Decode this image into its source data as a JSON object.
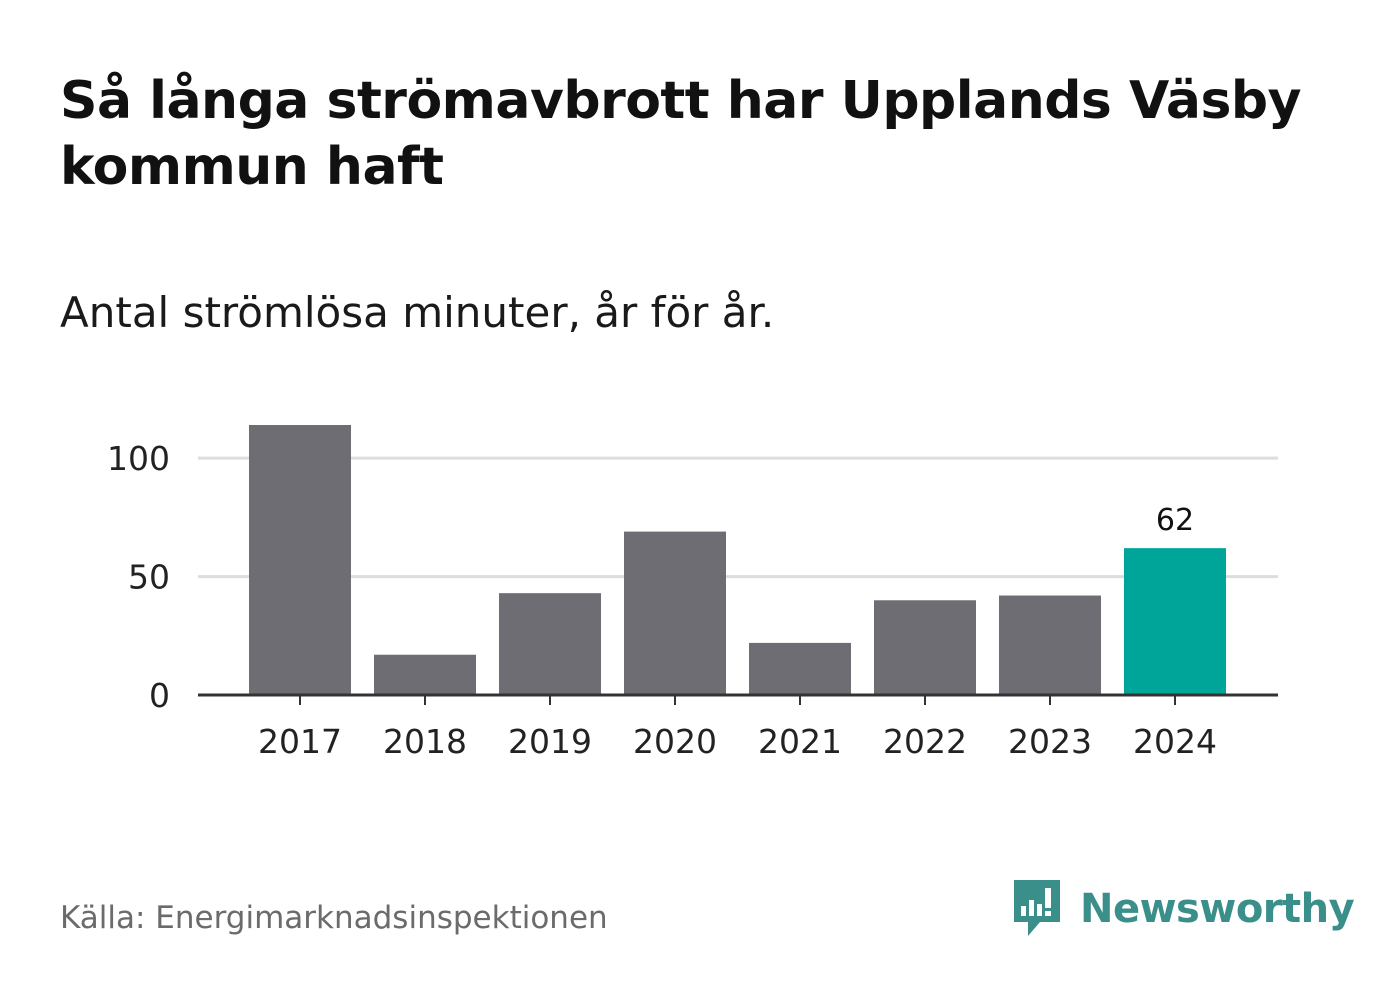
{
  "title": "Så långa strömavbrott har Upplands Väsby kommun haft",
  "subtitle": "Antal strömlösa minuter, år för år.",
  "source": "Källa: Energimarknadsinspektionen",
  "brand": {
    "name": "Newsworthy",
    "color": "#3b8f8a"
  },
  "colors": {
    "bar": "#6e6d74",
    "highlight": "#00a59a",
    "grid": "#dddddd",
    "axis": "#333333"
  },
  "chart_data": {
    "type": "bar",
    "title": "Så långa strömavbrott har Upplands Väsby kommun haft",
    "subtitle": "Antal strömlösa minuter, år för år.",
    "xlabel": "",
    "ylabel": "",
    "categories": [
      "2017",
      "2018",
      "2019",
      "2020",
      "2021",
      "2022",
      "2023",
      "2024"
    ],
    "values": [
      114,
      17,
      43,
      69,
      22,
      40,
      42,
      62
    ],
    "highlight_index": 7,
    "data_labels": [
      {
        "index": 7,
        "text": "62"
      }
    ],
    "yticks": [
      0,
      50,
      100
    ],
    "ylim": [
      0,
      114
    ],
    "grid": true
  }
}
